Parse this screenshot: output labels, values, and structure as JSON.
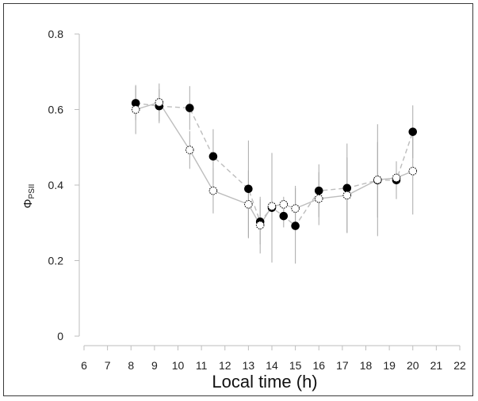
{
  "chart_data": {
    "type": "scatter",
    "title": "",
    "xlabel": "Local time (h)",
    "ylabel": "Φ",
    "ylabel_subscript": "PSII",
    "xlim": [
      6,
      22
    ],
    "ylim": [
      0,
      0.8
    ],
    "xticks": [
      6,
      7,
      8,
      9,
      10,
      11,
      12,
      13,
      14,
      15,
      16,
      17,
      18,
      19,
      20,
      21,
      22
    ],
    "yticks": [
      0,
      0.2,
      0.4,
      0.6,
      0.8
    ],
    "ytick_labels": [
      "0",
      "0.2",
      "0.4",
      "0.6",
      "0.8"
    ],
    "grid": false,
    "legend": "none",
    "series": [
      {
        "marker": "filled-circle",
        "line": "dashed",
        "color": "#000000",
        "line_color": "#bdbdbd",
        "x": [
          8.2,
          9.2,
          10.5,
          11.5,
          13.0,
          13.5,
          14.0,
          14.5,
          15.0,
          16.0,
          17.2,
          18.5,
          19.3,
          20.0
        ],
        "y": [
          0.617,
          0.609,
          0.604,
          0.476,
          0.39,
          0.303,
          0.34,
          0.318,
          0.292,
          0.385,
          0.392,
          0.413,
          0.413,
          0.541
        ],
        "err": [
          0.045,
          0.045,
          0.058,
          0.072,
          0.128,
          0.06,
          0.145,
          0.03,
          0.1,
          0.07,
          0.118,
          0.148,
          0.05,
          0.07
        ]
      },
      {
        "marker": "open-circle",
        "line": "solid",
        "color": "#000000",
        "line_color": "#bdbdbd",
        "x": [
          8.2,
          9.2,
          10.5,
          11.5,
          13.0,
          13.5,
          14.0,
          14.5,
          15.0,
          16.0,
          17.2,
          18.5,
          19.3,
          20.0
        ],
        "y": [
          0.6,
          0.619,
          0.493,
          0.385,
          0.349,
          0.294,
          0.344,
          0.349,
          0.338,
          0.364,
          0.373,
          0.414,
          0.419,
          0.437
        ],
        "err": [
          0.065,
          0.05,
          0.05,
          0.06,
          0.09,
          0.075,
          0.13,
          0.02,
          0.06,
          0.07,
          0.1,
          0.1,
          0.04,
          0.115
        ]
      }
    ]
  }
}
